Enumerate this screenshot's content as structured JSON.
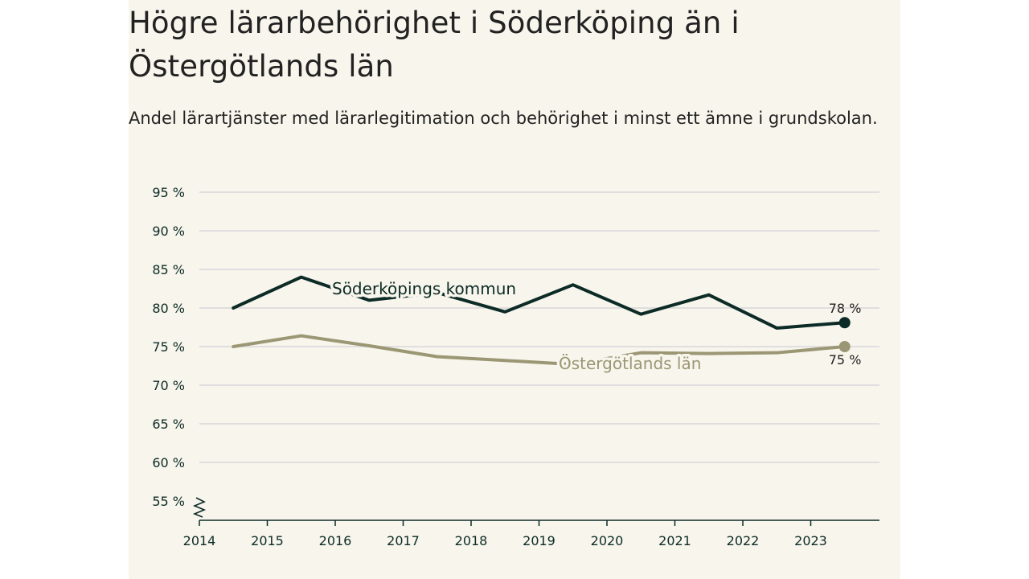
{
  "title": "Högre lärarbehörighet i Söderköping än i Östergötlands län",
  "subtitle": "Andel lärartjänster med lärarlegitimation och behörighet i minst ett ämne i grundskolan.",
  "colors": {
    "background": "#f7f5ec",
    "soderkoping": "#0d2b26",
    "ostergotland": "#9b9774",
    "grid": "#d9d6d9",
    "axis": "#0d2b26"
  },
  "chart_data": {
    "type": "line",
    "title": "Högre lärarbehörighet i Söderköping än i Östergötlands län",
    "subtitle": "Andel lärartjänster med lärarlegitimation och behörighet i minst ett ämne i grundskolan.",
    "xlabel": "",
    "ylabel": "",
    "x_ticks": [
      "2014",
      "2015",
      "2016",
      "2017",
      "2018",
      "2019",
      "2020",
      "2021",
      "2022",
      "2023"
    ],
    "y_ticks": [
      "95 %",
      "90 %",
      "85 %",
      "80 %",
      "75 %",
      "70 %",
      "65 %",
      "60 %",
      "55 %"
    ],
    "ylim": [
      55,
      95
    ],
    "y_axis_break": true,
    "grid": true,
    "series": [
      {
        "name": "Söderköpings kommun",
        "x": [
          2014.5,
          2015.5,
          2016.5,
          2017.5,
          2018.5,
          2019.5,
          2020.5,
          2021.5,
          2022.5,
          2023.5
        ],
        "values": [
          80,
          84,
          81,
          82,
          79.5,
          83,
          79.2,
          81.7,
          77.4,
          78.1
        ],
        "end_label": "78 %"
      },
      {
        "name": "Östergötlands län",
        "x": [
          2014.5,
          2015.5,
          2016.5,
          2017.5,
          2018.5,
          2019.5,
          2020.5,
          2021.5,
          2022.5,
          2023.5
        ],
        "values": [
          75,
          76.4,
          75.1,
          73.7,
          73.2,
          72.7,
          74.2,
          74.1,
          74.2,
          75
        ],
        "end_label": "75 %"
      }
    ]
  }
}
